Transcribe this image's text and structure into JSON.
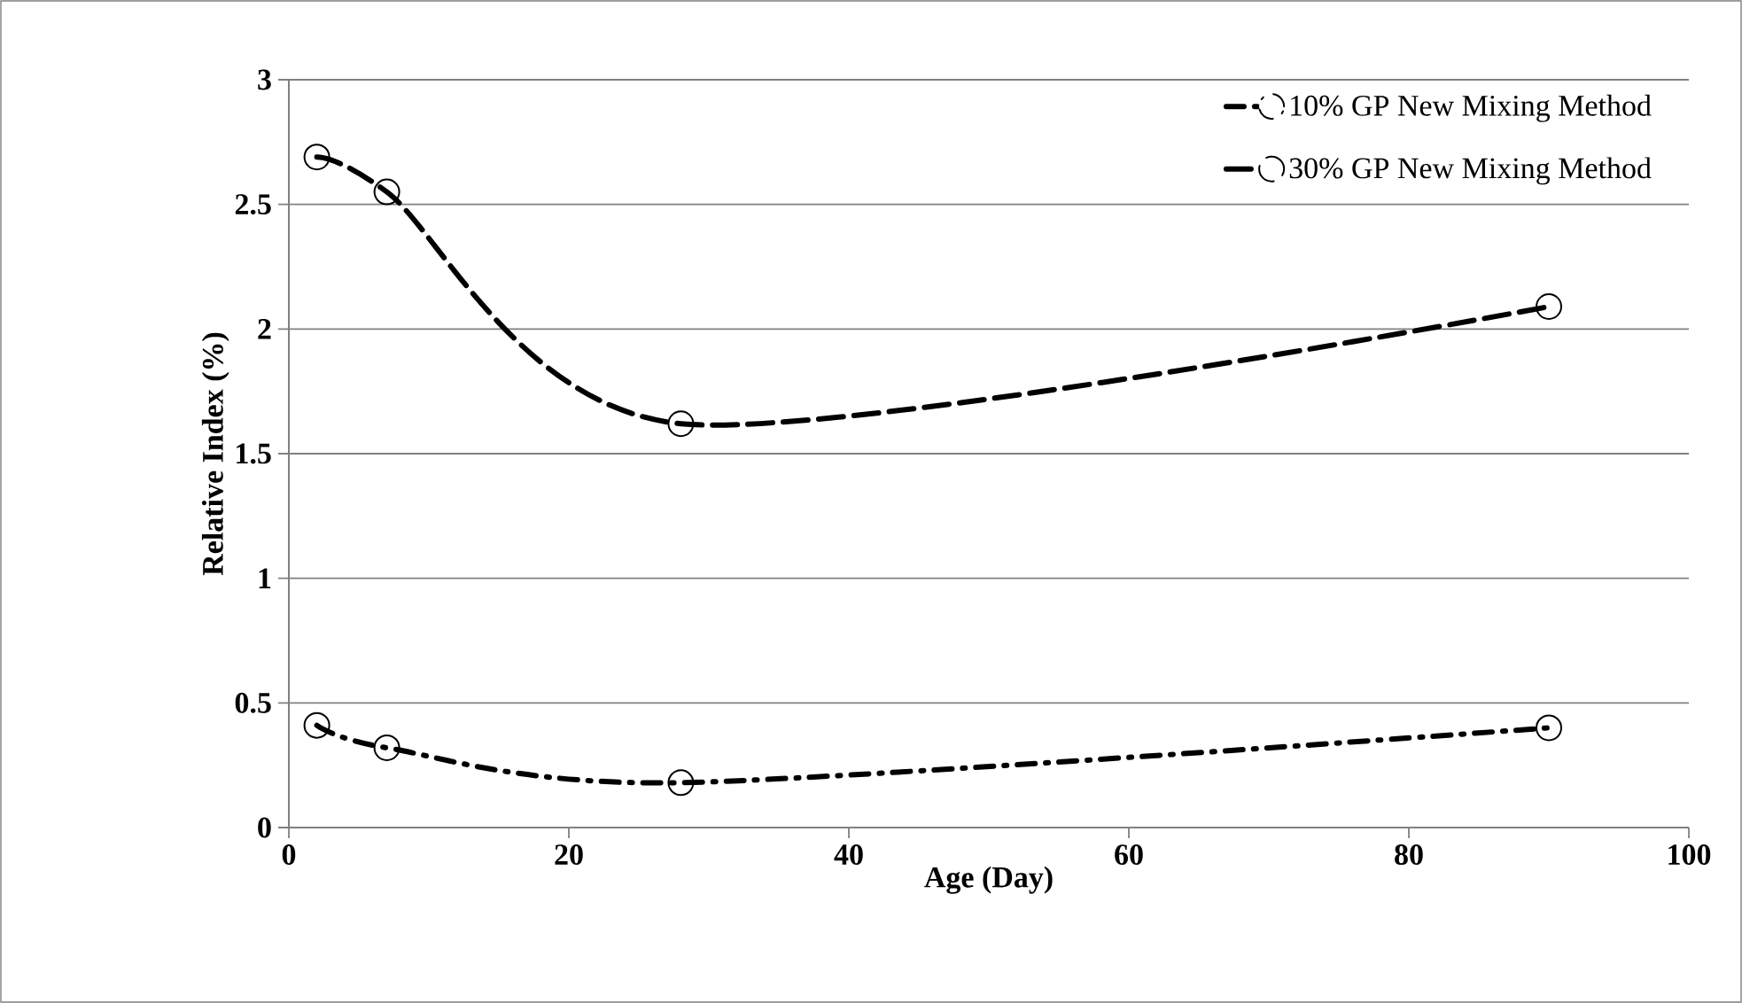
{
  "chart_data": {
    "type": "line",
    "xlabel": "Age (Day)",
    "ylabel": "Relative Index (%)",
    "x": [
      2,
      7,
      28,
      90
    ],
    "series": [
      {
        "name": "10% GP New Mixing Method",
        "color": "#000000",
        "values": [
          0.41,
          0.32,
          0.18,
          0.4
        ],
        "line_style": "dashdot"
      },
      {
        "name": "30% GP New Mixing Method",
        "color": "#000000",
        "values": [
          2.69,
          2.55,
          1.62,
          2.09
        ],
        "line_style": "dashed"
      }
    ],
    "xlim": [
      0,
      100
    ],
    "xticks": [
      0,
      20,
      40,
      60,
      80,
      100
    ],
    "ylim": [
      0,
      3
    ],
    "yticks": [
      0,
      0.5,
      1,
      1.5,
      2,
      2.5,
      3
    ],
    "grid": "y",
    "legend": "top right",
    "marker": "circle"
  }
}
